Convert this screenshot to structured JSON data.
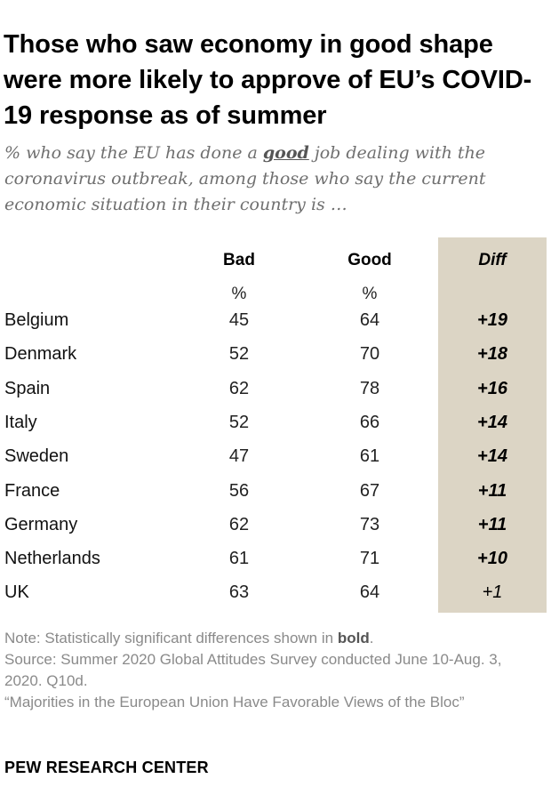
{
  "title": "Those who saw economy in good shape were more likely to approve of EU’s COVID-19 response as of summer",
  "subtitle": {
    "prefix": "% who say the EU has done a ",
    "emphasis": "good",
    "suffix": " job dealing with the coronavirus outbreak, among those who say the current economic situation in their country is …"
  },
  "chart_data": {
    "type": "table",
    "columns": [
      "Bad",
      "Good",
      "Diff"
    ],
    "units": [
      "%",
      "%"
    ],
    "rows": [
      {
        "country": "Belgium",
        "bad": 45,
        "good": 64,
        "diff": "+19",
        "significant": true
      },
      {
        "country": "Denmark",
        "bad": 52,
        "good": 70,
        "diff": "+18",
        "significant": true
      },
      {
        "country": "Spain",
        "bad": 62,
        "good": 78,
        "diff": "+16",
        "significant": true
      },
      {
        "country": "Italy",
        "bad": 52,
        "good": 66,
        "diff": "+14",
        "significant": true
      },
      {
        "country": "Sweden",
        "bad": 47,
        "good": 61,
        "diff": "+14",
        "significant": true
      },
      {
        "country": "France",
        "bad": 56,
        "good": 67,
        "diff": "+11",
        "significant": true
      },
      {
        "country": "Germany",
        "bad": 62,
        "good": 73,
        "diff": "+11",
        "significant": true
      },
      {
        "country": "Netherlands",
        "bad": 61,
        "good": 71,
        "diff": "+10",
        "significant": true
      },
      {
        "country": "UK",
        "bad": 63,
        "good": 64,
        "diff": "+1",
        "significant": false
      }
    ]
  },
  "footer": {
    "note_prefix": "Note: Statistically significant differences shown in ",
    "note_bold": "bold",
    "note_suffix": ".",
    "source": "Source: Summer 2020 Global Attitudes Survey conducted June 10-Aug. 3, 2020. Q10d.",
    "report": "“Majorities in the European Union Have Favorable Views of the Bloc”",
    "brand": "PEW RESEARCH CENTER"
  },
  "colors": {
    "diff_background": "#dcd5c5",
    "note_text": "#8a8a8a",
    "subtitle_text": "#6f6f6f"
  }
}
